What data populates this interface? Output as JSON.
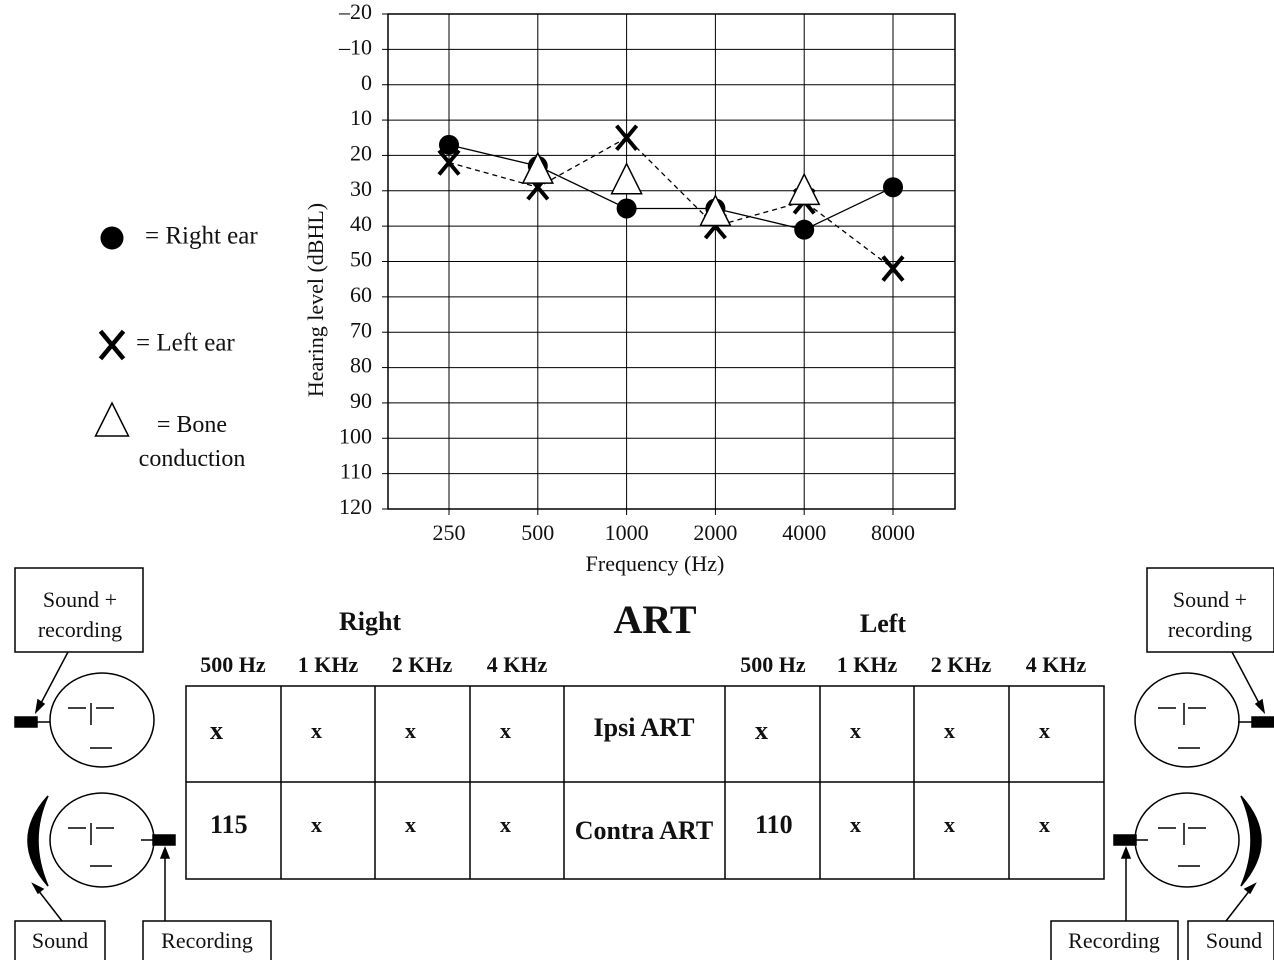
{
  "chart_data": {
    "type": "line",
    "x_label": "Frequency (Hz)",
    "y_label": "Hearing level (dBHL)",
    "categories": [
      "250",
      "500",
      "1000",
      "2000",
      "4000",
      "8000"
    ],
    "ylim": [
      -20,
      120
    ],
    "y_inverted": true,
    "grid": true,
    "yticks": [
      {
        "value": -20,
        "label": "–20"
      },
      {
        "value": -10,
        "label": "–10"
      },
      0,
      10,
      20,
      30,
      40,
      50,
      60,
      70,
      80,
      90,
      100,
      110,
      120
    ],
    "series": [
      {
        "name": "= Right ear",
        "color": "#000000",
        "marker": "circle",
        "linestyle": "solid",
        "values": [
          17,
          23,
          35,
          35,
          41,
          29
        ]
      },
      {
        "name": "= Left ear",
        "color": "#000000",
        "marker": "x",
        "linestyle": "dashed",
        "values": [
          22,
          29,
          15,
          40,
          33,
          52
        ]
      },
      {
        "name": "= Bone conduction",
        "color": "#000000",
        "marker": "triangle",
        "linestyle": "none",
        "values": [
          null,
          25,
          28,
          37,
          31,
          null
        ]
      }
    ]
  },
  "art": {
    "title": "ART",
    "right_label": "Right",
    "left_label": "Left",
    "right_frequencies": [
      "500 Hz",
      "1 KHz",
      "2 KHz",
      "4 KHz"
    ],
    "left_frequencies": [
      "500 Hz",
      "1 KHz",
      "2 KHz",
      "4 KHz"
    ],
    "rows": [
      {
        "label": "Ipsi ART",
        "right": [
          "x",
          "x",
          "x",
          "x"
        ],
        "left": [
          "x",
          "x",
          "x",
          "x"
        ]
      },
      {
        "label": "Contra ART",
        "right": [
          115,
          "x",
          "x",
          "x"
        ],
        "left": [
          110,
          "x",
          "x",
          "x"
        ]
      }
    ]
  },
  "boxes": {
    "sound_recording_left": [
      "Sound +",
      "recording"
    ],
    "sound_recording_right": [
      "Sound +",
      "recording"
    ],
    "sound_left": "Sound",
    "recording_left": "Recording",
    "recording_right": "Recording",
    "sound_right": "Sound"
  }
}
